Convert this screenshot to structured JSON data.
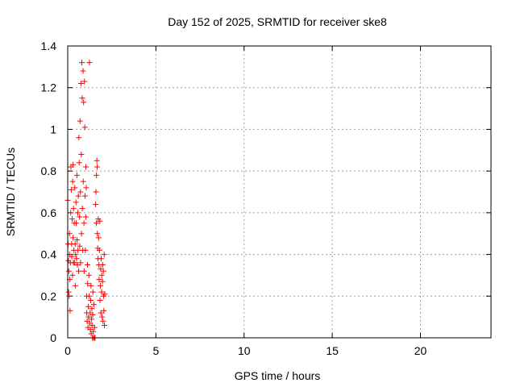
{
  "chart_data": {
    "type": "scatter",
    "title": "Day 152 of 2025, SRMTID for receiver ske8",
    "xlabel": "GPS time / hours",
    "ylabel": "SRMTID / TECUs",
    "xlim": [
      0,
      24
    ],
    "ylim": [
      0,
      1.4
    ],
    "xticks": [
      0,
      5,
      10,
      15,
      20
    ],
    "yticks": [
      0,
      0.2,
      0.4,
      0.6,
      0.8,
      1,
      1.2,
      1.4
    ],
    "xtick_labels": [
      "0",
      "5",
      "10",
      "15",
      "20"
    ],
    "ytick_labels": [
      "0",
      "0.2",
      "0.4",
      "0.6",
      "0.8",
      "1",
      "1.2",
      "1.4"
    ],
    "grid": true,
    "marker": "+",
    "series": [
      {
        "name": "ske8",
        "color": "#ff0000",
        "points": [
          [
            0.0,
            0.66
          ],
          [
            0.02,
            0.45
          ],
          [
            0.04,
            0.37
          ],
          [
            0.05,
            0.22
          ],
          [
            0.06,
            0.32
          ],
          [
            0.08,
            0.2
          ],
          [
            0.1,
            0.4
          ],
          [
            0.1,
            0.5
          ],
          [
            0.12,
            0.28
          ],
          [
            0.13,
            0.13
          ],
          [
            0.15,
            0.36
          ],
          [
            0.17,
            0.6
          ],
          [
            0.18,
            0.82
          ],
          [
            0.2,
            0.71
          ],
          [
            0.22,
            0.45
          ],
          [
            0.23,
            0.39
          ],
          [
            0.25,
            0.57
          ],
          [
            0.27,
            0.3
          ],
          [
            0.28,
            0.75
          ],
          [
            0.3,
            0.83
          ],
          [
            0.3,
            0.48
          ],
          [
            0.32,
            0.36
          ],
          [
            0.33,
            0.62
          ],
          [
            0.35,
            0.42
          ],
          [
            0.37,
            0.55
          ],
          [
            0.38,
            0.36
          ],
          [
            0.4,
            0.72
          ],
          [
            0.42,
            0.45
          ],
          [
            0.43,
            0.25
          ],
          [
            0.45,
            0.4
          ],
          [
            0.47,
            0.65
          ],
          [
            0.48,
            0.55
          ],
          [
            0.5,
            0.38
          ],
          [
            0.52,
            0.78
          ],
          [
            0.53,
            0.47
          ],
          [
            0.55,
            0.35
          ],
          [
            0.57,
            0.6
          ],
          [
            0.58,
            0.42
          ],
          [
            0.6,
            0.68
          ],
          [
            0.62,
            0.32
          ],
          [
            0.63,
            0.96
          ],
          [
            0.65,
            0.84
          ],
          [
            0.67,
            0.58
          ],
          [
            0.68,
            0.44
          ],
          [
            0.7,
            1.04
          ],
          [
            0.72,
            0.7
          ],
          [
            0.73,
            0.36
          ],
          [
            0.75,
            1.22
          ],
          [
            0.77,
            0.88
          ],
          [
            0.78,
            0.5
          ],
          [
            0.8,
            1.32
          ],
          [
            0.82,
            1.15
          ],
          [
            0.83,
            0.62
          ],
          [
            0.85,
            0.42
          ],
          [
            0.87,
            1.28
          ],
          [
            0.88,
            0.75
          ],
          [
            0.9,
            1.13
          ],
          [
            0.92,
            0.55
          ],
          [
            0.93,
            0.32
          ],
          [
            0.95,
            1.23
          ],
          [
            0.97,
            1.01
          ],
          [
            0.98,
            0.68
          ],
          [
            1.0,
            0.42
          ],
          [
            1.02,
            0.58
          ],
          [
            1.03,
            0.82
          ],
          [
            1.05,
            0.72
          ],
          [
            1.07,
            0.2
          ],
          [
            1.08,
            0.12
          ],
          [
            1.1,
            0.08
          ],
          [
            1.12,
            0.35
          ],
          [
            1.13,
            0.26
          ],
          [
            1.15,
            0.05
          ],
          [
            1.17,
            0.15
          ],
          [
            1.18,
            0.1
          ],
          [
            1.2,
            0.3
          ],
          [
            1.22,
            0.2
          ],
          [
            1.23,
            1.32
          ],
          [
            1.25,
            0.07
          ],
          [
            1.27,
            0.12
          ],
          [
            1.28,
            0.04
          ],
          [
            1.3,
            0.18
          ],
          [
            1.32,
            0.25
          ],
          [
            1.33,
            0.02
          ],
          [
            1.35,
            0.09
          ],
          [
            1.37,
            0.14
          ],
          [
            1.38,
            0.06
          ],
          [
            1.4,
            0.0
          ],
          [
            1.42,
            0.11
          ],
          [
            1.43,
            0.22
          ],
          [
            1.45,
            0.03
          ],
          [
            1.47,
            0.0
          ],
          [
            1.48,
            0.16
          ],
          [
            1.5,
            0.0
          ],
          [
            1.52,
            0.05
          ],
          [
            1.55,
            0.0
          ],
          [
            1.58,
            0.64
          ],
          [
            1.6,
            0.7
          ],
          [
            1.62,
            0.55
          ],
          [
            1.63,
            0.78
          ],
          [
            1.65,
            0.85
          ],
          [
            1.67,
            0.82
          ],
          [
            1.68,
            0.5
          ],
          [
            1.7,
            0.43
          ],
          [
            1.72,
            0.38
          ],
          [
            1.73,
            0.57
          ],
          [
            1.75,
            0.48
          ],
          [
            1.77,
            0.35
          ],
          [
            1.78,
            0.28
          ],
          [
            1.8,
            0.42
          ],
          [
            1.82,
            0.56
          ],
          [
            1.83,
            0.18
          ],
          [
            1.85,
            0.25
          ],
          [
            1.87,
            0.33
          ],
          [
            1.88,
            0.12
          ],
          [
            1.9,
            0.38
          ],
          [
            1.92,
            0.22
          ],
          [
            1.93,
            0.3
          ],
          [
            1.95,
            0.1
          ],
          [
            1.97,
            0.27
          ],
          [
            1.98,
            0.35
          ],
          [
            2.0,
            0.08
          ],
          [
            2.02,
            0.32
          ],
          [
            2.03,
            0.2
          ],
          [
            2.05,
            0.13
          ],
          [
            2.07,
            0.4
          ],
          [
            2.08,
            0.06
          ],
          [
            2.1,
            0.21
          ]
        ]
      }
    ]
  }
}
